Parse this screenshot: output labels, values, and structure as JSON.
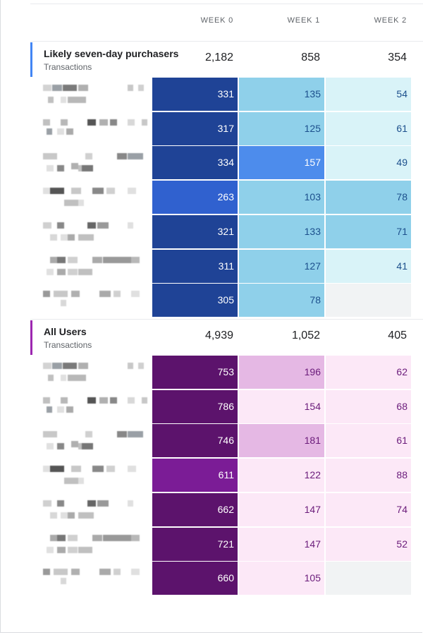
{
  "columns": [
    "WEEK 0",
    "WEEK 1",
    "WEEK 2"
  ],
  "groups": [
    {
      "name": "Likely seven-day purchasers",
      "metric": "Transactions",
      "accent": "#4285f4",
      "totals": [
        "2,182",
        "858",
        "354"
      ],
      "rows": [
        [
          "331",
          "135",
          "54"
        ],
        [
          "317",
          "125",
          "61"
        ],
        [
          "334",
          "157",
          "49"
        ],
        [
          "263",
          "103",
          "78"
        ],
        [
          "321",
          "133",
          "71"
        ],
        [
          "311",
          "127",
          "41"
        ],
        [
          "305",
          "78",
          ""
        ]
      ],
      "cell_colors": [
        [
          "#1f4396",
          "#8fd0ea",
          "#d9f3f8"
        ],
        [
          "#1f4396",
          "#8fd0ea",
          "#d9f3f8"
        ],
        [
          "#1f4396",
          "#4d8cec",
          "#d9f3f8"
        ],
        [
          "#3061cf",
          "#8fd0ea",
          "#8fd0ea"
        ],
        [
          "#1f4396",
          "#8fd0ea",
          "#8fd0ea"
        ],
        [
          "#1f4396",
          "#8fd0ea",
          "#d9f3f8"
        ],
        [
          "#1f4396",
          "#8fd0ea",
          "#f1f3f4"
        ]
      ],
      "text_colors": [
        [
          "#ffffff",
          "#1c4f8c",
          "#1c4f8c"
        ],
        [
          "#ffffff",
          "#1c4f8c",
          "#1c4f8c"
        ],
        [
          "#ffffff",
          "#ffffff",
          "#1c4f8c"
        ],
        [
          "#ffffff",
          "#1c4f8c",
          "#1c4f8c"
        ],
        [
          "#ffffff",
          "#1c4f8c",
          "#1c4f8c"
        ],
        [
          "#ffffff",
          "#1c4f8c",
          "#1c4f8c"
        ],
        [
          "#ffffff",
          "#1c4f8c",
          "#1c4f8c"
        ]
      ]
    },
    {
      "name": "All Users",
      "metric": "Transactions",
      "accent": "#9c27b0",
      "totals": [
        "4,939",
        "1,052",
        "405"
      ],
      "rows": [
        [
          "753",
          "196",
          "62"
        ],
        [
          "786",
          "154",
          "68"
        ],
        [
          "746",
          "181",
          "61"
        ],
        [
          "611",
          "122",
          "88"
        ],
        [
          "662",
          "147",
          "74"
        ],
        [
          "721",
          "147",
          "52"
        ],
        [
          "660",
          "105",
          ""
        ]
      ],
      "cell_colors": [
        [
          "#5c136c",
          "#e5b8e4",
          "#fce8f7"
        ],
        [
          "#5c136c",
          "#fce8f7",
          "#fce8f7"
        ],
        [
          "#5c136c",
          "#e5b8e4",
          "#fce8f7"
        ],
        [
          "#7b1c96",
          "#fce8f7",
          "#fce8f7"
        ],
        [
          "#5c136c",
          "#fce8f7",
          "#fce8f7"
        ],
        [
          "#5c136c",
          "#fce8f7",
          "#fce8f7"
        ],
        [
          "#5c136c",
          "#fce8f7",
          "#f1f3f4"
        ]
      ],
      "text_colors": [
        [
          "#ffffff",
          "#6a1b7a",
          "#6a1b7a"
        ],
        [
          "#ffffff",
          "#6a1b7a",
          "#6a1b7a"
        ],
        [
          "#ffffff",
          "#6a1b7a",
          "#6a1b7a"
        ],
        [
          "#ffffff",
          "#6a1b7a",
          "#6a1b7a"
        ],
        [
          "#ffffff",
          "#6a1b7a",
          "#6a1b7a"
        ],
        [
          "#ffffff",
          "#6a1b7a",
          "#6a1b7a"
        ],
        [
          "#ffffff",
          "#6a1b7a",
          "#6a1b7a"
        ]
      ]
    }
  ]
}
